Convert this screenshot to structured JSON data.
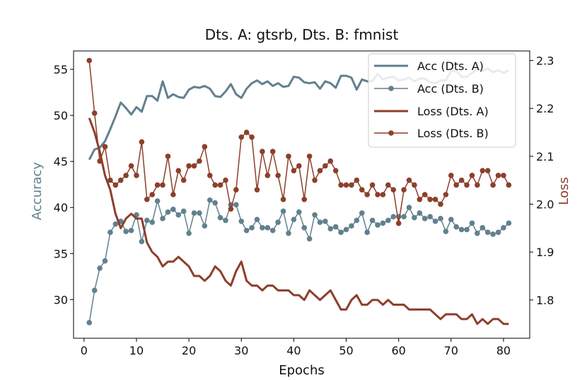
{
  "chart_data": {
    "type": "line",
    "title": "Dts. A: gtsrb, Dts. B: fmnist",
    "xlabel": "Epochs",
    "ylabel_left": "Accuracy",
    "ylabel_right": "Loss",
    "xlim": [
      -2,
      85
    ],
    "ylim_left": [
      25.8,
      57.0
    ],
    "ylim_right": [
      1.72,
      2.32
    ],
    "xticks": [
      0,
      10,
      20,
      30,
      40,
      50,
      60,
      70,
      80
    ],
    "yticks_left": [
      30,
      35,
      40,
      45,
      50,
      55
    ],
    "yticks_right": [
      1.8,
      1.9,
      2.0,
      2.1,
      2.2,
      2.3
    ],
    "grid": false,
    "legend_position": "top-right",
    "colors": {
      "acc": "#62808e",
      "loss": "#8c3f2b"
    },
    "series": [
      {
        "name": "Acc (Dts. A)",
        "axis": "left",
        "marker": false,
        "linewidth": 3,
        "color": "#62808e",
        "values": [
          45.2,
          46.3,
          46.5,
          47.2,
          48.5,
          49.9,
          51.4,
          50.8,
          50.1,
          50.9,
          50.4,
          52.1,
          52.1,
          51.6,
          53.7,
          51.9,
          52.3,
          52.0,
          51.9,
          52.8,
          53.1,
          53.0,
          53.2,
          52.9,
          52.1,
          52.0,
          52.6,
          53.4,
          52.3,
          51.9,
          52.9,
          53.5,
          53.8,
          53.4,
          53.7,
          53.2,
          53.5,
          53.1,
          53.2,
          54.2,
          54.1,
          53.6,
          53.5,
          53.6,
          52.9,
          53.7,
          53.5,
          53.0,
          54.3,
          54.3,
          54.1,
          52.8,
          53.9,
          53.7,
          53.7,
          54.5,
          53.9,
          54.1,
          54.2,
          53.8,
          53.9,
          54.1,
          53.7,
          54.0,
          54.0,
          53.6,
          53.5,
          53.8,
          53.8,
          54.8,
          54.8,
          54.2,
          54.2,
          54.6,
          55.1,
          54.8,
          55.1,
          54.7,
          54.9,
          54.6,
          54.9
        ]
      },
      {
        "name": "Acc (Dts. B)",
        "axis": "left",
        "marker": true,
        "linewidth": 1.5,
        "color": "#62808e",
        "values": [
          27.5,
          31.0,
          33.4,
          34.2,
          37.3,
          38.2,
          38.5,
          37.4,
          37.5,
          39.2,
          36.3,
          38.6,
          38.4,
          40.7,
          38.8,
          39.5,
          39.8,
          39.2,
          39.6,
          37.2,
          39.4,
          39.4,
          38.0,
          40.8,
          40.5,
          38.9,
          38.6,
          40.3,
          40.3,
          38.5,
          37.5,
          37.8,
          38.7,
          37.8,
          37.8,
          37.5,
          38.4,
          39.6,
          37.2,
          38.7,
          39.5,
          37.8,
          36.6,
          39.2,
          38.4,
          38.5,
          37.7,
          37.9,
          37.3,
          37.6,
          38.0,
          38.6,
          39.4,
          37.3,
          38.6,
          38.1,
          38.3,
          38.6,
          39.0,
          39.0,
          39.0,
          40.0,
          38.9,
          39.4,
          38.8,
          39.0,
          38.5,
          38.8,
          37.4,
          38.7,
          37.9,
          37.6,
          37.6,
          38.3,
          37.2,
          37.8,
          37.3,
          37.1,
          37.3,
          37.8,
          38.3
        ]
      },
      {
        "name": "Loss (Dts. A)",
        "axis": "right",
        "marker": false,
        "linewidth": 3,
        "color": "#8c3f2b",
        "values": [
          2.18,
          2.15,
          2.11,
          2.06,
          2.03,
          1.98,
          1.95,
          1.97,
          1.98,
          1.97,
          1.97,
          1.92,
          1.9,
          1.89,
          1.87,
          1.88,
          1.88,
          1.89,
          1.88,
          1.87,
          1.85,
          1.85,
          1.84,
          1.85,
          1.87,
          1.86,
          1.84,
          1.83,
          1.86,
          1.88,
          1.84,
          1.83,
          1.83,
          1.82,
          1.83,
          1.83,
          1.82,
          1.82,
          1.82,
          1.81,
          1.81,
          1.8,
          1.82,
          1.81,
          1.8,
          1.81,
          1.82,
          1.8,
          1.78,
          1.78,
          1.8,
          1.81,
          1.79,
          1.79,
          1.8,
          1.8,
          1.79,
          1.8,
          1.79,
          1.79,
          1.79,
          1.78,
          1.78,
          1.78,
          1.78,
          1.78,
          1.77,
          1.76,
          1.77,
          1.77,
          1.77,
          1.76,
          1.76,
          1.77,
          1.75,
          1.76,
          1.75,
          1.76,
          1.76,
          1.75,
          1.75
        ]
      },
      {
        "name": "Loss (Dts. B)",
        "axis": "right",
        "marker": true,
        "linewidth": 1.5,
        "color": "#8c3f2b",
        "values": [
          2.3,
          2.19,
          2.09,
          2.12,
          2.05,
          2.04,
          2.05,
          2.06,
          2.08,
          2.06,
          2.13,
          2.01,
          2.02,
          2.04,
          2.04,
          2.1,
          2.02,
          2.07,
          2.05,
          2.08,
          2.08,
          2.09,
          2.12,
          2.06,
          2.04,
          2.04,
          2.05,
          1.99,
          2.03,
          2.14,
          2.15,
          2.14,
          2.03,
          2.11,
          2.06,
          2.11,
          2.06,
          2.01,
          2.1,
          2.07,
          2.08,
          2.01,
          2.1,
          2.05,
          2.07,
          2.08,
          2.09,
          2.07,
          2.04,
          2.04,
          2.04,
          2.05,
          2.03,
          2.02,
          2.04,
          2.02,
          2.02,
          2.04,
          2.03,
          1.96,
          2.03,
          2.05,
          2.04,
          2.01,
          2.02,
          2.01,
          2.01,
          2.0,
          2.02,
          2.06,
          2.04,
          2.05,
          2.04,
          2.06,
          2.04,
          2.07,
          2.07,
          2.04,
          2.06,
          2.06,
          2.04
        ]
      }
    ]
  }
}
